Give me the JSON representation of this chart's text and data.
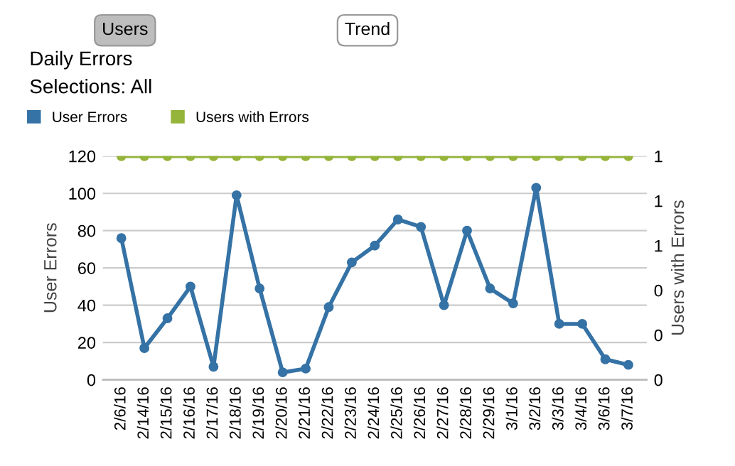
{
  "chart_data": {
    "type": "line",
    "title": "Daily Errors",
    "subtitle": "Selections: All",
    "annotations": [
      "Users",
      "Trend"
    ],
    "categories": [
      "2/6/16",
      "2/14/16",
      "2/15/16",
      "2/16/16",
      "2/17/16",
      "2/18/16",
      "2/19/16",
      "2/20/16",
      "2/21/16",
      "2/22/16",
      "2/23/16",
      "2/24/16",
      "2/25/16",
      "2/26/16",
      "2/27/16",
      "2/28/16",
      "2/29/16",
      "3/1/16",
      "3/2/16",
      "3/3/16",
      "3/4/16",
      "3/6/16",
      "3/7/16"
    ],
    "series": [
      {
        "name": "User Errors",
        "color": "#3572a5",
        "values": [
          76,
          17,
          33,
          50,
          7,
          99,
          49,
          4,
          6,
          39,
          63,
          72,
          86,
          82,
          40,
          80,
          49,
          41,
          103,
          30,
          30,
          11,
          8
        ]
      },
      {
        "name": "Users with Errors",
        "color": "#94b43a",
        "axis": "y2",
        "values": [
          1,
          1,
          1,
          1,
          1,
          1,
          1,
          1,
          1,
          1,
          1,
          1,
          1,
          1,
          1,
          1,
          1,
          1,
          1,
          1,
          1,
          1,
          1
        ]
      }
    ],
    "ylabel": "User Errors",
    "y2label": "Users with Errors",
    "ylim": [
      0,
      120
    ],
    "yticks": [
      0,
      20,
      40,
      60,
      80,
      100,
      120
    ],
    "y2lim": [
      0,
      1
    ],
    "y2ticks": [
      {
        "value": 0,
        "label": "0"
      },
      {
        "value": 0.2,
        "label": "0"
      },
      {
        "value": 0.4,
        "label": "0"
      },
      {
        "value": 0.6,
        "label": "1"
      },
      {
        "value": 0.8,
        "label": "1"
      },
      {
        "value": 1,
        "label": "1"
      }
    ],
    "grid": "y",
    "legend": "top left",
    "marker": "circle",
    "line_style": "solid"
  }
}
